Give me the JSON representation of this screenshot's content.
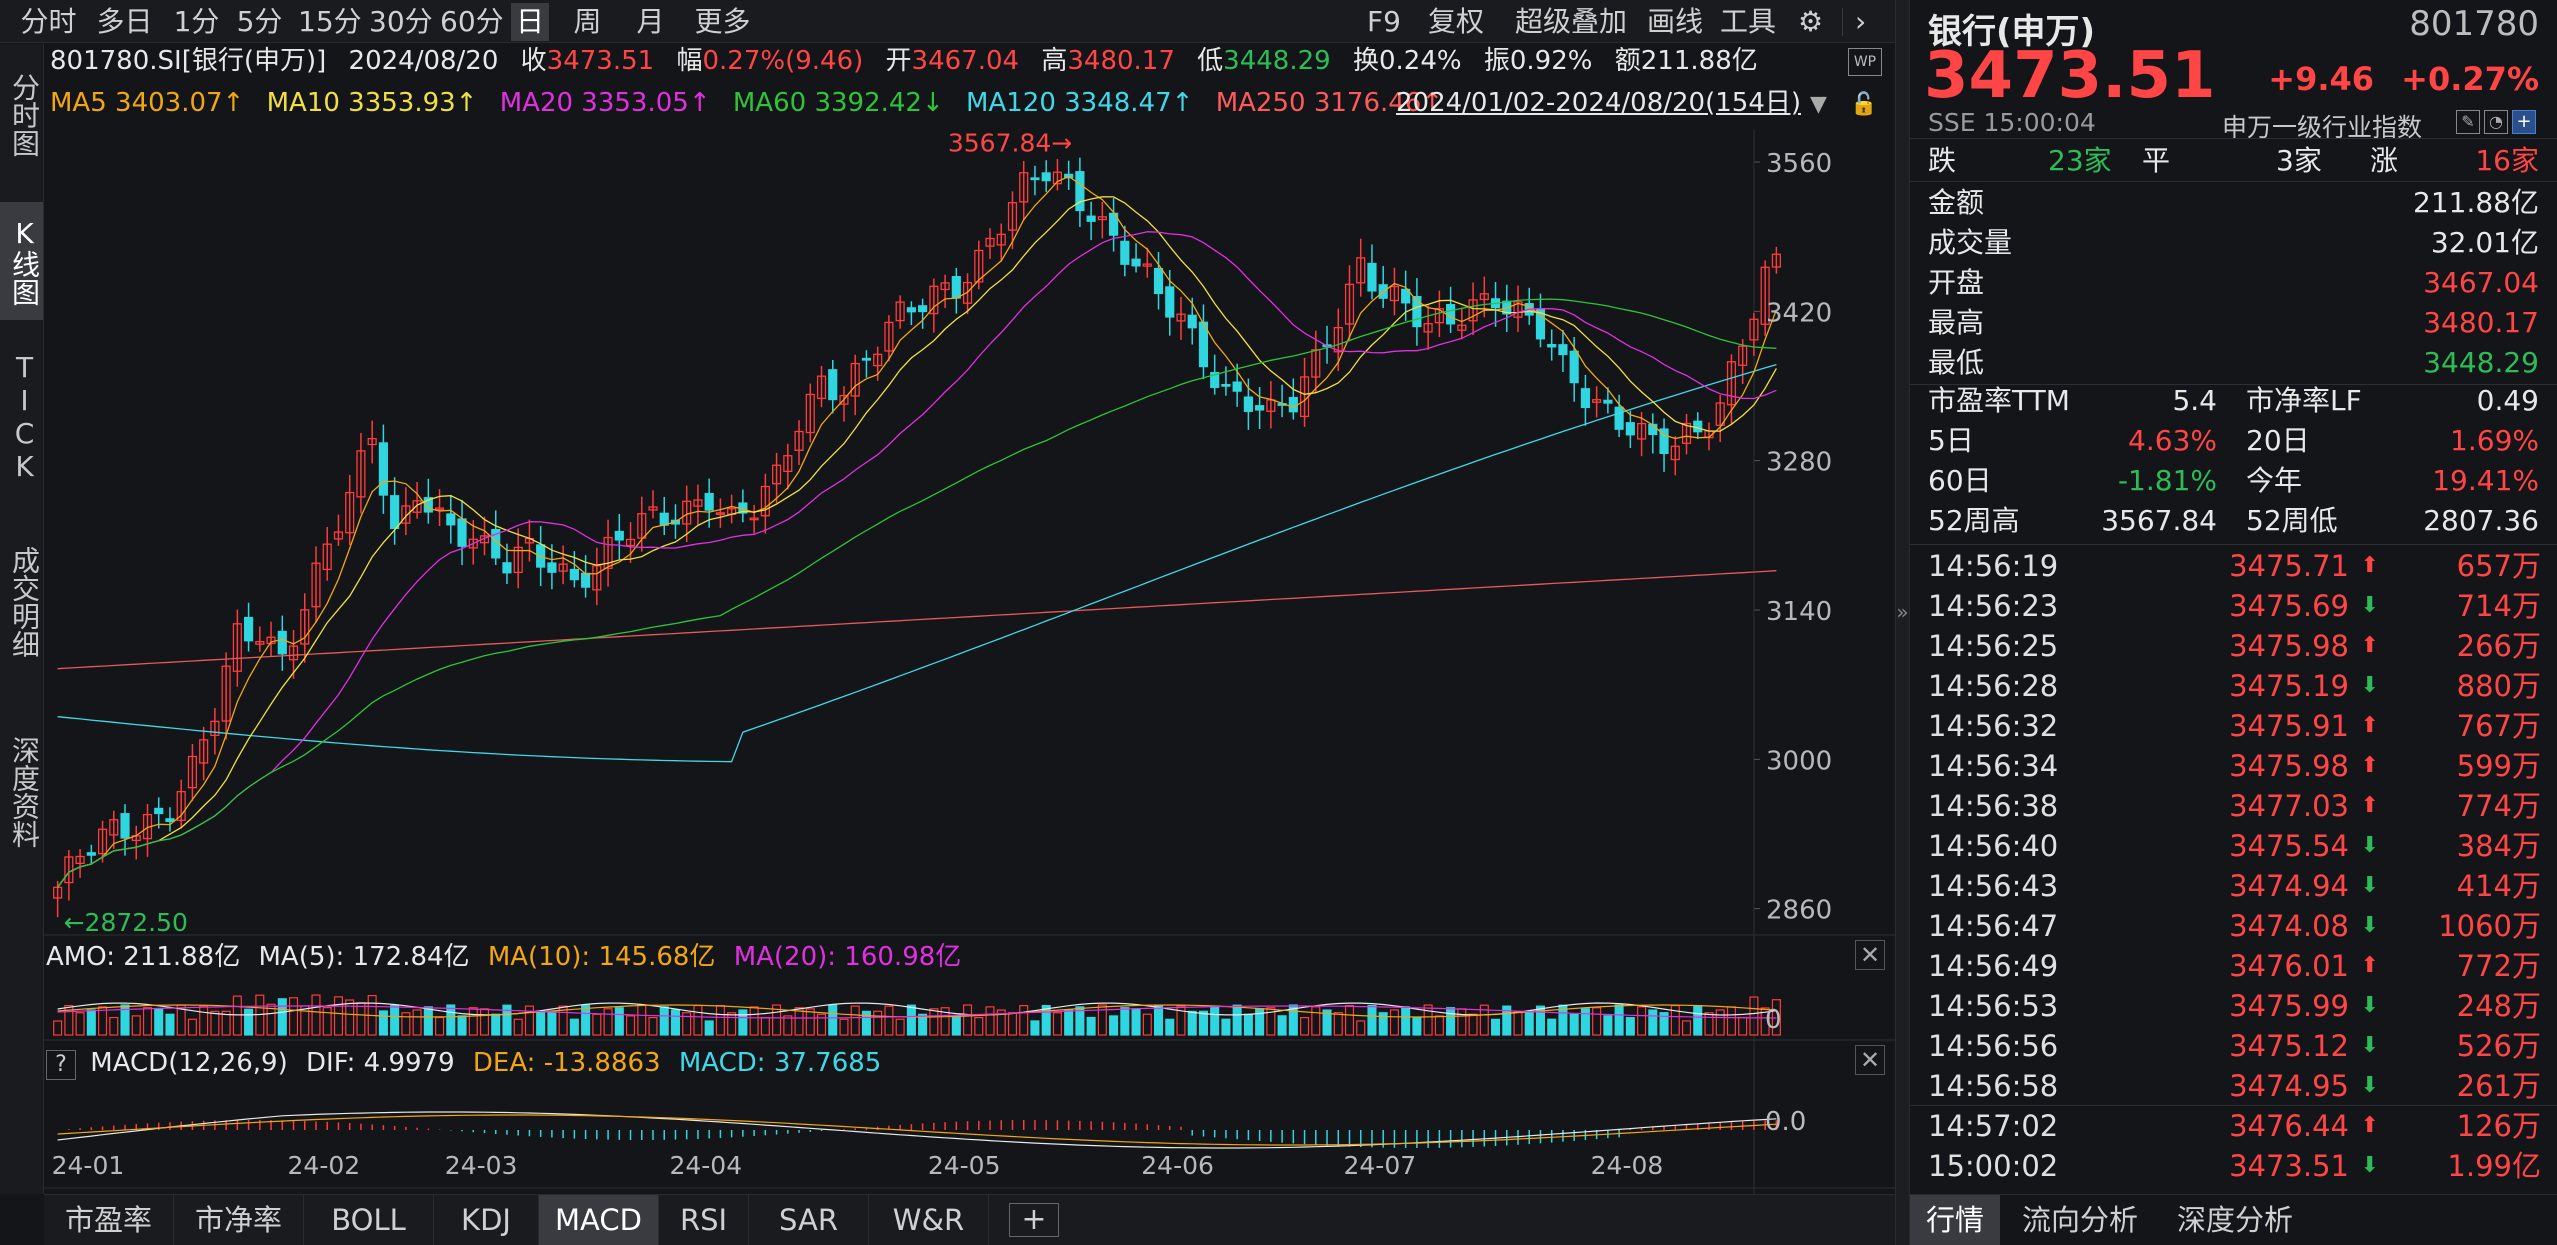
{
  "period_bar": {
    "buttons": [
      "分时",
      "多日",
      "1分",
      "5分",
      "15分",
      "30分",
      "60分",
      "日",
      "周",
      "月",
      "更多"
    ],
    "active": "日",
    "right_buttons": [
      "F9",
      "复权",
      "超级叠加",
      "画线",
      "工具"
    ]
  },
  "left_tabs": [
    "分时图",
    "K线图",
    "TICK",
    "成交明细",
    "深度资料"
  ],
  "left_tabs_active": "K线图",
  "info_row1": {
    "code_name": "801780.SI[银行(申万)]",
    "date": "2024/08/20",
    "close_label": "收",
    "close": "3473.51",
    "range_label": "幅",
    "range": "0.27%(9.46)",
    "open_label": "开",
    "open": "3467.04",
    "high_label": "高",
    "high": "3480.17",
    "low_label": "低",
    "low": "3448.29",
    "turnover_label": "换",
    "turnover": "0.24%",
    "amp_label": "振",
    "amp": "0.92%",
    "amount_label": "额",
    "amount": "211.88亿"
  },
  "info_row2": {
    "ma5": "MA5 3403.07↑",
    "ma10": "MA10 3353.93↑",
    "ma20": "MA20 3353.05↑",
    "ma60": "MA60 3392.42↓",
    "ma120": "MA120 3348.47↑",
    "ma250": "MA250 3176.46↑",
    "date_range": "2024/01/02-2024/08/20(154日)"
  },
  "annotations": {
    "high": "3567.84",
    "low": "2872.50"
  },
  "volume_panel": {
    "amo": "AMO: 211.88亿",
    "ma5": "MA(5): 172.84亿",
    "ma10": "MA(10): 145.68亿",
    "ma20": "MA(20): 160.98亿",
    "axis_zero": "0"
  },
  "macd_panel": {
    "help": "?",
    "title": "MACD(12,26,9)",
    "dif": "DIF: 4.9979",
    "dea": "DEA: -13.8863",
    "macd": "MACD: 37.7685",
    "axis_zero": "0.0"
  },
  "bottom_tabs": [
    "市盈率",
    "市净率",
    "BOLL",
    "KDJ",
    "MACD",
    "RSI",
    "SAR",
    "W&R"
  ],
  "bottom_tabs_active": "MACD",
  "right_panel": {
    "name": "银行(申万)",
    "code": "801780",
    "price": "3473.51",
    "change": "+9.46",
    "change_pct": "+0.27%",
    "exchange_time": "SSE  15:00:04",
    "index_type": "申万一级行业指数",
    "breadth": {
      "down_label": "跌",
      "down": "23家",
      "flat_label": "平",
      "flat": "3家",
      "up_label": "涨",
      "up": "16家"
    },
    "stats": [
      {
        "label": "金额",
        "value": "211.88亿",
        "color": "white"
      },
      {
        "label": "成交量",
        "value": "32.01亿",
        "color": "white"
      },
      {
        "label": "开盘",
        "value": "3467.04",
        "color": "red"
      },
      {
        "label": "最高",
        "value": "3480.17",
        "color": "red"
      },
      {
        "label": "最低",
        "value": "3448.29",
        "color": "green"
      }
    ],
    "pe_label": "市盈率TTM",
    "pe": "5.4",
    "pb_label": "市净率LF",
    "pb": "0.49",
    "returns": [
      {
        "l1": "5日",
        "v1": "4.63%",
        "c1": "red",
        "l2": "20日",
        "v2": "1.69%",
        "c2": "red"
      },
      {
        "l1": "60日",
        "v1": "-1.81%",
        "c1": "green",
        "l2": "今年",
        "v2": "19.41%",
        "c2": "red"
      },
      {
        "l1": "52周高",
        "v1": "3567.84",
        "c1": "white",
        "l2": "52周低",
        "v2": "2807.36",
        "c2": "white"
      }
    ],
    "ticks": [
      {
        "time": "14:56:19",
        "price": "3475.71",
        "dir": "up",
        "vol": "657万"
      },
      {
        "time": "14:56:23",
        "price": "3475.69",
        "dir": "down",
        "vol": "714万"
      },
      {
        "time": "14:56:25",
        "price": "3475.98",
        "dir": "up",
        "vol": "266万"
      },
      {
        "time": "14:56:28",
        "price": "3475.19",
        "dir": "down",
        "vol": "880万"
      },
      {
        "time": "14:56:32",
        "price": "3475.91",
        "dir": "up",
        "vol": "767万"
      },
      {
        "time": "14:56:34",
        "price": "3475.98",
        "dir": "up",
        "vol": "599万"
      },
      {
        "time": "14:56:38",
        "price": "3477.03",
        "dir": "up",
        "vol": "774万"
      },
      {
        "time": "14:56:40",
        "price": "3475.54",
        "dir": "down",
        "vol": "384万"
      },
      {
        "time": "14:56:43",
        "price": "3474.94",
        "dir": "down",
        "vol": "414万"
      },
      {
        "time": "14:56:47",
        "price": "3474.08",
        "dir": "down",
        "vol": "1060万"
      },
      {
        "time": "14:56:49",
        "price": "3476.01",
        "dir": "up",
        "vol": "772万"
      },
      {
        "time": "14:56:53",
        "price": "3475.99",
        "dir": "down",
        "vol": "248万"
      },
      {
        "time": "14:56:56",
        "price": "3475.12",
        "dir": "down",
        "vol": "526万"
      },
      {
        "time": "14:56:58",
        "price": "3474.95",
        "dir": "down",
        "vol": "261万"
      },
      {
        "time": "14:57:02",
        "price": "3476.44",
        "dir": "up",
        "vol": "126万"
      },
      {
        "time": "15:00:02",
        "price": "3473.51",
        "dir": "down",
        "vol": "1.99亿"
      }
    ],
    "tabs": [
      "行情",
      "流向分析",
      "深度分析"
    ],
    "tabs_active": "行情"
  },
  "colors": {
    "up": "#ff4545",
    "down": "#2dbd58",
    "ma5": "#f2a712",
    "ma10": "#f0e040",
    "ma20": "#e030e0",
    "ma60": "#2ec43a",
    "ma120": "#40d8e8",
    "ma250": "#e55a5a",
    "candle_up": "#ff3b3b",
    "candle_down": "#2fd6e0"
  },
  "chart_data": {
    "type": "candlestick",
    "y_ticks": [
      3560,
      3420,
      3280,
      3140,
      3000,
      2860
    ],
    "x_ticks": [
      "24-01",
      "24-02",
      "24-03",
      "24-04",
      "24-05",
      "24-06",
      "24-07",
      "24-08"
    ],
    "x_tick_days": [
      0,
      21,
      35,
      55,
      78,
      97,
      115,
      137
    ],
    "ylim": [
      2840,
      3590
    ],
    "days": 154,
    "anchors": [
      [
        0,
        2880
      ],
      [
        2,
        2905
      ],
      [
        5,
        2930
      ],
      [
        8,
        2945
      ],
      [
        10,
        2960
      ],
      [
        12,
        2990
      ],
      [
        14,
        3040
      ],
      [
        16,
        3110
      ],
      [
        18,
        3120
      ],
      [
        20,
        3100
      ],
      [
        22,
        3150
      ],
      [
        24,
        3200
      ],
      [
        26,
        3240
      ],
      [
        28,
        3300
      ],
      [
        30,
        3210
      ],
      [
        32,
        3260
      ],
      [
        34,
        3230
      ],
      [
        36,
        3210
      ],
      [
        38,
        3190
      ],
      [
        40,
        3180
      ],
      [
        42,
        3200
      ],
      [
        44,
        3190
      ],
      [
        46,
        3170
      ],
      [
        48,
        3180
      ],
      [
        50,
        3200
      ],
      [
        52,
        3220
      ],
      [
        54,
        3230
      ],
      [
        56,
        3240
      ],
      [
        58,
        3250
      ],
      [
        60,
        3220
      ],
      [
        62,
        3230
      ],
      [
        64,
        3260
      ],
      [
        66,
        3320
      ],
      [
        68,
        3360
      ],
      [
        70,
        3350
      ],
      [
        72,
        3370
      ],
      [
        74,
        3400
      ],
      [
        76,
        3420
      ],
      [
        78,
        3440
      ],
      [
        80,
        3450
      ],
      [
        82,
        3470
      ],
      [
        84,
        3500
      ],
      [
        86,
        3530
      ],
      [
        88,
        3550
      ],
      [
        90,
        3540
      ],
      [
        92,
        3520
      ],
      [
        94,
        3490
      ],
      [
        96,
        3460
      ],
      [
        98,
        3430
      ],
      [
        100,
        3410
      ],
      [
        102,
        3380
      ],
      [
        104,
        3350
      ],
      [
        106,
        3340
      ],
      [
        108,
        3320
      ],
      [
        110,
        3330
      ],
      [
        112,
        3370
      ],
      [
        114,
        3420
      ],
      [
        116,
        3470
      ],
      [
        118,
        3440
      ],
      [
        120,
        3420
      ],
      [
        122,
        3400
      ],
      [
        124,
        3410
      ],
      [
        126,
        3430
      ],
      [
        128,
        3440
      ],
      [
        130,
        3420
      ],
      [
        132,
        3400
      ],
      [
        134,
        3360
      ],
      [
        136,
        3340
      ],
      [
        138,
        3330
      ],
      [
        140,
        3320
      ],
      [
        142,
        3300
      ],
      [
        144,
        3290
      ],
      [
        146,
        3300
      ],
      [
        148,
        3330
      ],
      [
        150,
        3400
      ],
      [
        152,
        3460
      ],
      [
        153,
        3473.51
      ]
    ]
  }
}
